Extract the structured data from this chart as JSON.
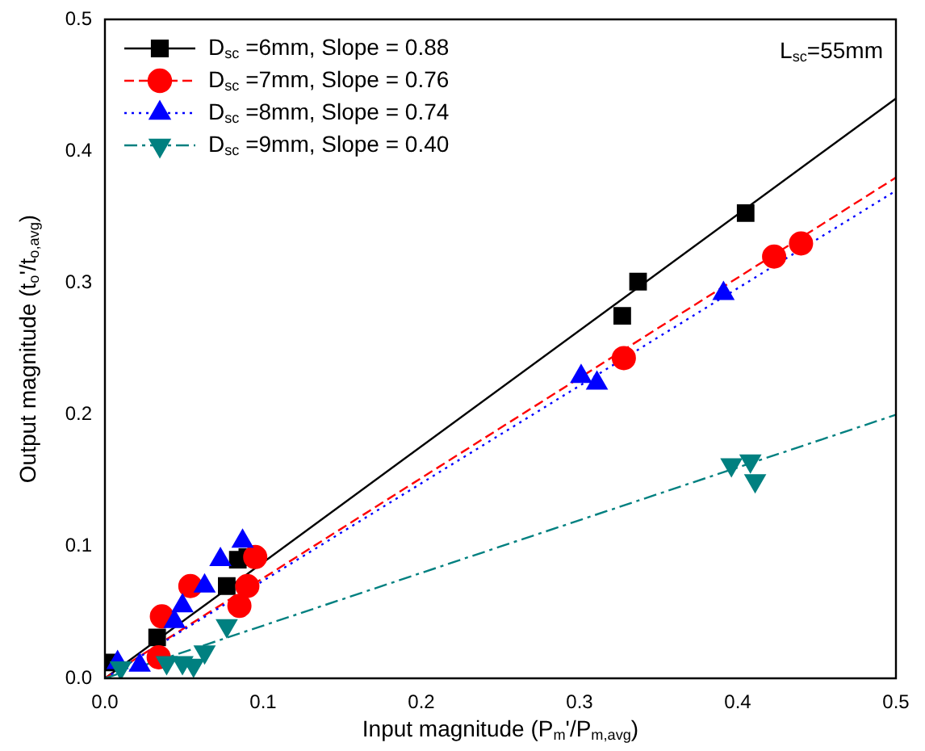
{
  "chart_data": {
    "type": "scatter",
    "xlabel": "Input magnitude (P$_{m}$'/P$_{m,avg}$)",
    "ylabel": "Output magnitude (t$_{o}$'/t$_{o,avg}$)",
    "xlim": [
      0,
      0.5
    ],
    "ylim": [
      0,
      0.5
    ],
    "xticks": [
      {
        "value": 0,
        "label": "0.0"
      },
      {
        "value": 0.1,
        "label": "0.1"
      },
      {
        "value": 0.2,
        "label": "0.2"
      },
      {
        "value": 0.3,
        "label": "0.3"
      },
      {
        "value": 0.4,
        "label": "0.4"
      },
      {
        "value": 0.5,
        "label": "0.5"
      }
    ],
    "yticks": [
      {
        "value": 0,
        "label": "0.0"
      },
      {
        "value": 0.1,
        "label": "0.1"
      },
      {
        "value": 0.2,
        "label": "0.2"
      },
      {
        "value": 0.3,
        "label": "0.3"
      },
      {
        "value": 0.4,
        "label": "0.4"
      },
      {
        "value": 0.5,
        "label": "0.5"
      }
    ],
    "grid": false,
    "legend": "top left",
    "annotations": [
      "L$_{sc}$=55mm"
    ],
    "series": [
      {
        "name": "D$_{sc}$ =6mm, Slope = 0.88",
        "color": "#000000",
        "marker": "square",
        "line_style": "solid",
        "x": [
          0.002,
          0.033,
          0.077,
          0.084,
          0.09,
          0.327,
          0.337,
          0.405
        ],
        "values": [
          0.012,
          0.031,
          0.07,
          0.09,
          0.092,
          0.275,
          0.301,
          0.353
        ]
      },
      {
        "name": "D$_{sc}$ =7mm, Slope = 0.76",
        "color": "#ff0000",
        "marker": "circle",
        "line_style": "dashed",
        "x": [
          0.034,
          0.036,
          0.054,
          0.085,
          0.09,
          0.095,
          0.328,
          0.423,
          0.44
        ],
        "values": [
          0.016,
          0.047,
          0.07,
          0.055,
          0.07,
          0.092,
          0.243,
          0.32,
          0.33
        ]
      },
      {
        "name": "D$_{sc}$ =8mm, Slope = 0.74",
        "color": "#0000ff",
        "marker": "triangle",
        "line_style": "dotted",
        "x": [
          0.008,
          0.022,
          0.044,
          0.049,
          0.063,
          0.073,
          0.087,
          0.301,
          0.311,
          0.391
        ],
        "values": [
          0.012,
          0.01,
          0.043,
          0.055,
          0.07,
          0.09,
          0.104,
          0.229,
          0.224,
          0.292
        ]
      },
      {
        "name": "D$_{sc}$ =9mm, Slope = 0.40",
        "color": "#008080",
        "marker": "triangle-down",
        "line_style": "dashdot",
        "x": [
          0.01,
          0.039,
          0.049,
          0.056,
          0.063,
          0.077,
          0.396,
          0.408,
          0.411
        ],
        "values": [
          0.008,
          0.012,
          0.012,
          0.01,
          0.02,
          0.04,
          0.162,
          0.165,
          0.15
        ]
      },
      {
        "type": "line",
        "color": "#000000",
        "line_style": "solid",
        "x": [
          0,
          0.5
        ],
        "values": [
          0,
          0.44
        ]
      },
      {
        "type": "line",
        "color": "#ff0000",
        "line_style": "dashed",
        "x": [
          0,
          0.5
        ],
        "values": [
          0,
          0.38
        ]
      },
      {
        "type": "line",
        "color": "#0000ff",
        "line_style": "dotted",
        "x": [
          0,
          0.5
        ],
        "values": [
          0,
          0.37
        ]
      },
      {
        "type": "line",
        "color": "#008080",
        "line_style": "dashdot",
        "x": [
          0,
          0.5
        ],
        "values": [
          0,
          0.2
        ]
      }
    ]
  }
}
